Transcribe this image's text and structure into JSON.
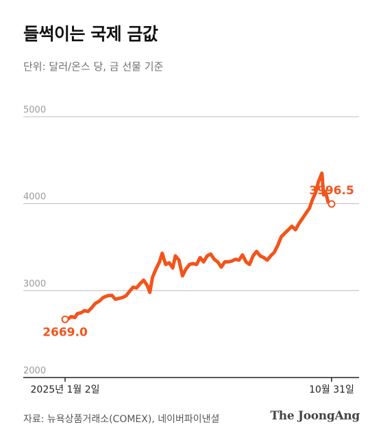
{
  "header": {
    "title": "들썩이는 국제 금값",
    "unit_note": "단위: 달러/온스 당, 금 선물 기준"
  },
  "footer": {
    "source": "자료: 뉴욕상품거래소(COMEX), 네이버파이낸셜",
    "brand": "The JoongAng"
  },
  "colors": {
    "line": "#f2541b",
    "grid": "#bdbdbd",
    "axis": "#222222",
    "tick_text": "#9a9a9a"
  },
  "chart_data": {
    "type": "line",
    "title": "들썩이는 국제 금값",
    "subtitle": "단위: 달러/온스 당, 금 선물 기준",
    "ylim": [
      2000,
      5000
    ],
    "yticks": [
      "2000",
      "3000",
      "4000",
      "5000"
    ],
    "xticks": [
      "2025년 1월 2일",
      "10월 31일"
    ],
    "grid": true,
    "x_range": [
      "2025-01-02",
      "2025-10-31"
    ],
    "series": [
      {
        "values": [
          [
            "2025-01-02",
            2669.0
          ],
          [
            "2025-01-06",
            2680
          ],
          [
            "2025-01-09",
            2700
          ],
          [
            "2025-01-13",
            2690
          ],
          [
            "2025-01-16",
            2735
          ],
          [
            "2025-01-20",
            2745
          ],
          [
            "2025-01-24",
            2770
          ],
          [
            "2025-01-28",
            2760
          ],
          [
            "2025-02-01",
            2800
          ],
          [
            "2025-02-05",
            2850
          ],
          [
            "2025-02-10",
            2880
          ],
          [
            "2025-02-14",
            2920
          ],
          [
            "2025-02-19",
            2940
          ],
          [
            "2025-02-24",
            2945
          ],
          [
            "2025-02-28",
            2900
          ],
          [
            "2025-03-04",
            2910
          ],
          [
            "2025-03-08",
            2920
          ],
          [
            "2025-03-12",
            2940
          ],
          [
            "2025-03-16",
            2990
          ],
          [
            "2025-03-20",
            3040
          ],
          [
            "2025-03-24",
            3030
          ],
          [
            "2025-03-28",
            3080
          ],
          [
            "2025-04-01",
            3120
          ],
          [
            "2025-04-05",
            3060
          ],
          [
            "2025-04-08",
            2980
          ],
          [
            "2025-04-11",
            3150
          ],
          [
            "2025-04-15",
            3250
          ],
          [
            "2025-04-19",
            3330
          ],
          [
            "2025-04-22",
            3430
          ],
          [
            "2025-04-26",
            3300
          ],
          [
            "2025-04-30",
            3320
          ],
          [
            "2025-05-04",
            3260
          ],
          [
            "2025-05-07",
            3400
          ],
          [
            "2025-05-11",
            3350
          ],
          [
            "2025-05-15",
            3170
          ],
          [
            "2025-05-19",
            3250
          ],
          [
            "2025-05-23",
            3300
          ],
          [
            "2025-05-27",
            3310
          ],
          [
            "2025-05-31",
            3300
          ],
          [
            "2025-06-04",
            3380
          ],
          [
            "2025-06-08",
            3330
          ],
          [
            "2025-06-12",
            3400
          ],
          [
            "2025-06-16",
            3420
          ],
          [
            "2025-06-20",
            3360
          ],
          [
            "2025-06-24",
            3330
          ],
          [
            "2025-06-28",
            3270
          ],
          [
            "2025-07-02",
            3330
          ],
          [
            "2025-07-06",
            3330
          ],
          [
            "2025-07-10",
            3340
          ],
          [
            "2025-07-14",
            3360
          ],
          [
            "2025-07-18",
            3350
          ],
          [
            "2025-07-22",
            3410
          ],
          [
            "2025-07-26",
            3330
          ],
          [
            "2025-07-30",
            3300
          ],
          [
            "2025-08-03",
            3400
          ],
          [
            "2025-08-07",
            3450
          ],
          [
            "2025-08-11",
            3400
          ],
          [
            "2025-08-15",
            3380
          ],
          [
            "2025-08-19",
            3350
          ],
          [
            "2025-08-23",
            3400
          ],
          [
            "2025-08-27",
            3440
          ],
          [
            "2025-08-31",
            3520
          ],
          [
            "2025-09-04",
            3620
          ],
          [
            "2025-09-08",
            3660
          ],
          [
            "2025-09-12",
            3700
          ],
          [
            "2025-09-16",
            3740
          ],
          [
            "2025-09-20",
            3700
          ],
          [
            "2025-09-24",
            3770
          ],
          [
            "2025-09-28",
            3830
          ],
          [
            "2025-10-02",
            3890
          ],
          [
            "2025-10-06",
            3950
          ],
          [
            "2025-10-09",
            4040
          ],
          [
            "2025-10-13",
            4130
          ],
          [
            "2025-10-16",
            4250
          ],
          [
            "2025-10-20",
            4350
          ],
          [
            "2025-10-22",
            4100
          ],
          [
            "2025-10-24",
            4140
          ],
          [
            "2025-10-27",
            4020
          ],
          [
            "2025-10-29",
            4000
          ],
          [
            "2025-10-31",
            3996.5
          ]
        ]
      }
    ],
    "annotations": [
      {
        "date": "2025-01-02",
        "value": 2669.0,
        "label": "2669.0"
      },
      {
        "date": "2025-10-31",
        "value": 3996.5,
        "label": "3996.5"
      }
    ]
  }
}
